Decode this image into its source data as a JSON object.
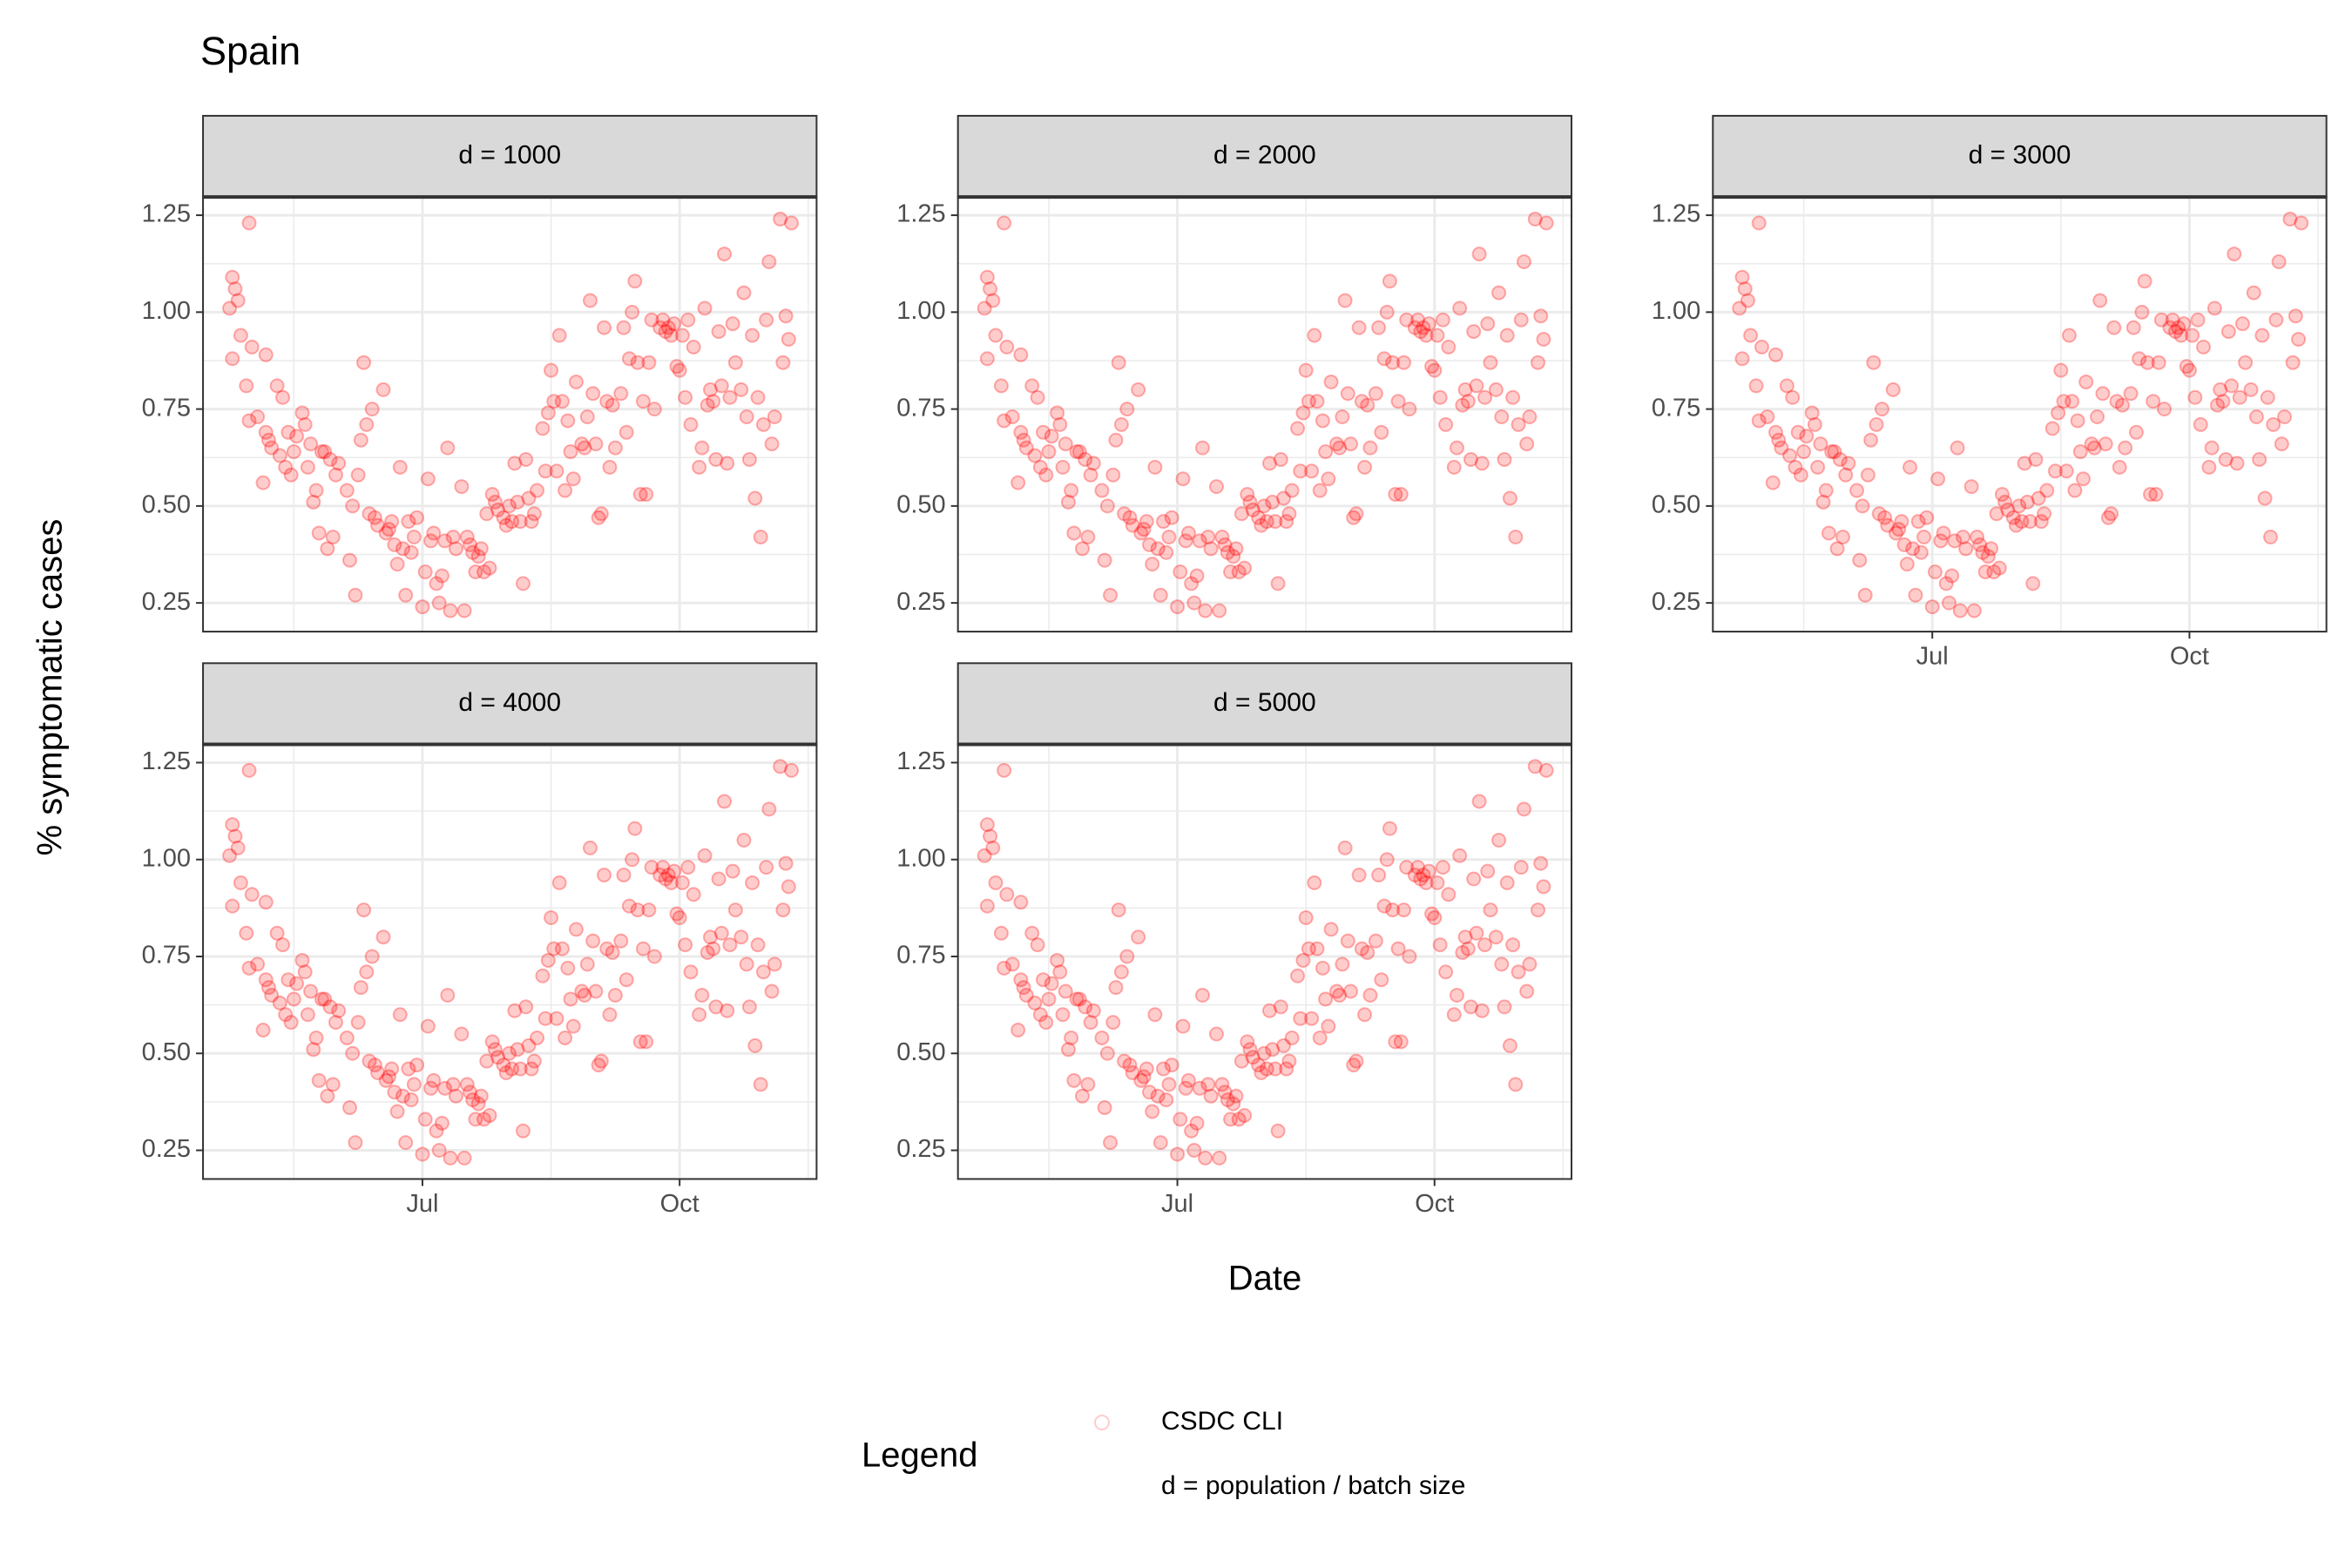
{
  "chart_data": {
    "type": "scatter",
    "title": "Spain",
    "x_label": "Date",
    "y_label": "% symptomatic cases",
    "facets": [
      "d = 1000",
      "d = 2000",
      "d = 3000",
      "d = 4000",
      "d = 5000"
    ],
    "xlim": [
      103.5,
      323
    ],
    "xticks": [
      {
        "value": 182,
        "label": "Jul"
      },
      {
        "value": 274,
        "label": "Oct"
      }
    ],
    "ylim": [
      0.176,
      1.297
    ],
    "yticks": [
      0.25,
      {
        "value": 0.5,
        "label": "0.50"
      },
      {
        "value": 0.75,
        "label": "0.75"
      },
      {
        "value": 1.0,
        "label": "1.00"
      },
      1.25
    ],
    "grid": true,
    "minor_grid": true,
    "legend": {
      "title": "Legend",
      "note": "d = population / batch size",
      "position": "bottom"
    },
    "series": [
      {
        "name": "CSDC CLI",
        "color": "#ff0000",
        "x": [
          113,
          114,
          114,
          115,
          116,
          117,
          119,
          120,
          120,
          121,
          123,
          125,
          126,
          126,
          127,
          128,
          130,
          131,
          132,
          133,
          134,
          135,
          136,
          137,
          139,
          140,
          141,
          142,
          143,
          144,
          145,
          146,
          147,
          148,
          149,
          150,
          151,
          152,
          155,
          156,
          157,
          158,
          159,
          160,
          161,
          162,
          163,
          164,
          165,
          166,
          168,
          169,
          170,
          171,
          172,
          173,
          174,
          175,
          176,
          177,
          178,
          179,
          180,
          182,
          183,
          184,
          185,
          186,
          187,
          188,
          189,
          190,
          191,
          192,
          193,
          194,
          196,
          197,
          198,
          199,
          200,
          201,
          202,
          203,
          204,
          205,
          206,
          207,
          208,
          209,
          211,
          212,
          213,
          214,
          215,
          216,
          217,
          218,
          219,
          220,
          221,
          222,
          223,
          225,
          226,
          227,
          228,
          229,
          230,
          231,
          232,
          233,
          234,
          235,
          236,
          237,
          239,
          240,
          241,
          242,
          243,
          244,
          245,
          246,
          247,
          248,
          249,
          250,
          251,
          253,
          254,
          255,
          256,
          257,
          258,
          259,
          260,
          261,
          262,
          263,
          264,
          265,
          267,
          268,
          269,
          270,
          271,
          272,
          273,
          274,
          275,
          276,
          277,
          278,
          279,
          281,
          282,
          283,
          284,
          285,
          286,
          287,
          288,
          289,
          290,
          291,
          292,
          293,
          294,
          296,
          297,
          298,
          299,
          300,
          301,
          302,
          303,
          304,
          305,
          306,
          307,
          308,
          310,
          311,
          312,
          313,
          314
        ],
        "values": [
          1.01,
          1.09,
          0.88,
          1.06,
          1.03,
          0.94,
          0.81,
          1.23,
          0.72,
          0.91,
          0.73,
          0.56,
          0.89,
          0.69,
          0.67,
          0.65,
          0.81,
          0.63,
          0.78,
          0.6,
          0.69,
          0.58,
          0.64,
          0.68,
          0.74,
          0.71,
          0.6,
          0.66,
          0.51,
          0.54,
          0.43,
          0.64,
          0.64,
          0.39,
          0.62,
          0.42,
          0.58,
          0.61,
          0.54,
          0.36,
          0.5,
          0.27,
          0.58,
          0.67,
          0.87,
          0.71,
          0.48,
          0.75,
          0.47,
          0.45,
          0.8,
          0.43,
          0.44,
          0.46,
          0.4,
          0.35,
          0.6,
          0.39,
          0.27,
          0.46,
          0.38,
          0.42,
          0.47,
          0.24,
          0.33,
          0.57,
          0.41,
          0.43,
          0.3,
          0.25,
          0.32,
          0.41,
          0.65,
          0.23,
          0.42,
          0.39,
          0.55,
          0.23,
          0.42,
          0.4,
          0.38,
          0.33,
          0.37,
          0.39,
          0.33,
          0.48,
          0.34,
          0.53,
          0.51,
          0.49,
          0.47,
          0.45,
          0.5,
          0.46,
          0.61,
          0.51,
          0.46,
          0.3,
          0.62,
          0.52,
          0.46,
          0.48,
          0.54,
          0.7,
          0.59,
          0.74,
          0.85,
          0.77,
          0.59,
          0.94,
          0.77,
          0.54,
          0.72,
          0.64,
          0.57,
          0.82,
          0.66,
          0.65,
          0.73,
          1.03,
          0.79,
          0.66,
          0.47,
          0.48,
          0.96,
          0.77,
          0.6,
          0.76,
          0.65,
          0.79,
          0.96,
          0.69,
          0.88,
          1.0,
          1.08,
          0.87,
          0.53,
          0.77,
          0.53,
          0.87,
          0.98,
          0.75,
          0.96,
          0.98,
          0.95,
          0.96,
          0.94,
          0.97,
          0.86,
          0.85,
          0.94,
          0.78,
          0.98,
          0.71,
          0.91,
          0.6,
          0.65,
          1.01,
          0.76,
          0.8,
          0.77,
          0.62,
          0.95,
          0.81,
          1.15,
          0.61,
          0.78,
          0.97,
          0.87,
          0.8,
          1.05,
          0.73,
          0.62,
          0.94,
          0.52,
          0.78,
          0.42,
          0.71,
          0.98,
          1.13,
          0.66,
          0.73,
          1.24,
          0.87,
          0.99,
          0.93,
          1.23
        ]
      }
    ]
  }
}
